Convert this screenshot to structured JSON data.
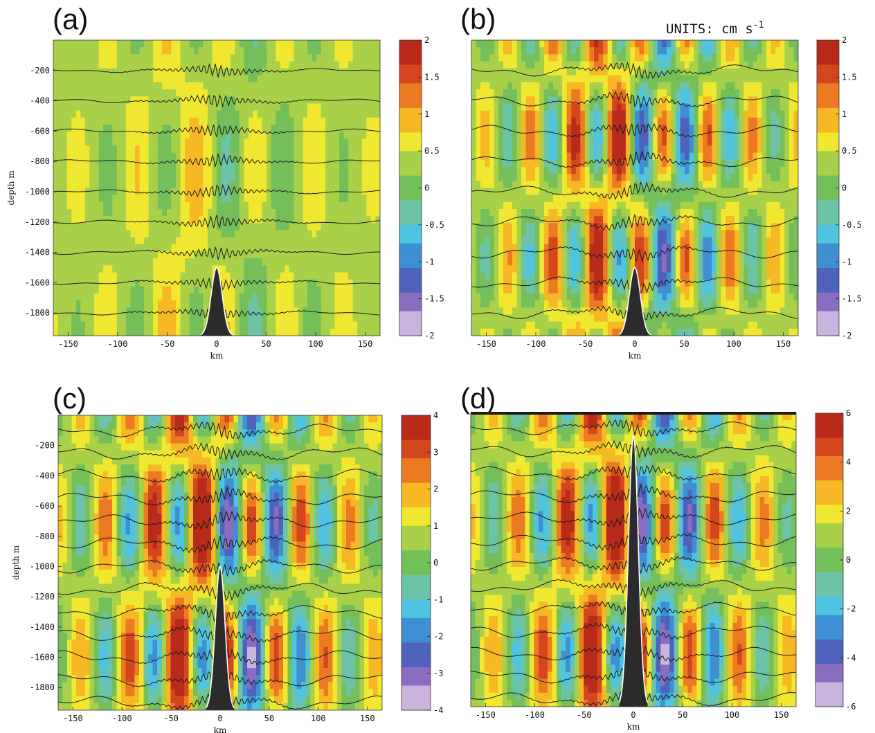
{
  "units_label": {
    "prefix": "UNITS: cm s",
    "superscript": "-1"
  },
  "colormap": [
    "#c8b4dc",
    "#8a6cc0",
    "#4e62bc",
    "#3f8fd3",
    "#4fc4e0",
    "#6cc3a8",
    "#74bf5a",
    "#a8d048",
    "#f0e830",
    "#f6b824",
    "#ec7a22",
    "#d4461e",
    "#b82a1a"
  ],
  "chart_data": [
    {
      "type": "heatmap",
      "panel_label": "(a)",
      "xlabel": "km",
      "ylabel": "depth m",
      "xlim": [
        -165,
        165
      ],
      "ylim": [
        -1950,
        0
      ],
      "xticks": [
        -150,
        -100,
        -50,
        0,
        50,
        100,
        150
      ],
      "yticks": [
        -200,
        -400,
        -600,
        -800,
        -1000,
        -1200,
        -1400,
        -1600,
        -1800
      ],
      "colorbar": {
        "min": -2,
        "max": 2,
        "ticks": [
          "2",
          "1.5",
          "1",
          "0.5",
          "0",
          "-0.5",
          "-1",
          "-1.5",
          "-2"
        ]
      },
      "isopycnal_depths": [
        -200,
        -400,
        -600,
        -800,
        -1000,
        -1200,
        -1400,
        -1600,
        -1800
      ],
      "ridge": {
        "crest_depth": -1500,
        "half_width_km": 10
      },
      "wave_amplitude": 0.25,
      "beam_spacing_km": 60,
      "ridge_top_bar": false
    },
    {
      "type": "heatmap",
      "panel_label": "(b)",
      "xlabel": "km",
      "ylabel": "",
      "xlim": [
        -165,
        165
      ],
      "ylim": [
        -1950,
        0
      ],
      "xticks": [
        -150,
        -100,
        -50,
        0,
        50,
        100,
        150
      ],
      "yticks": [],
      "colorbar": {
        "min": -2,
        "max": 2,
        "ticks": [
          "2",
          "1.5",
          "1",
          "0.5",
          "0",
          "-0.5",
          "-1",
          "-1.5",
          "-2"
        ]
      },
      "isopycnal_depths": [
        -200,
        -400,
        -600,
        -800,
        -1000,
        -1200,
        -1400,
        -1600,
        -1800
      ],
      "ridge": {
        "crest_depth": -1500,
        "half_width_km": 10
      },
      "wave_amplitude": 0.7,
      "beam_spacing_km": 45,
      "ridge_top_bar": false
    },
    {
      "type": "heatmap",
      "panel_label": "(c)",
      "xlabel": "km",
      "ylabel": "depth m",
      "xlim": [
        -165,
        165
      ],
      "ylim": [
        -1950,
        0
      ],
      "xticks": [
        -150,
        -100,
        -50,
        0,
        50,
        100,
        150
      ],
      "yticks": [
        -200,
        -400,
        -600,
        -800,
        -1000,
        -1200,
        -1400,
        -1600,
        -1800
      ],
      "colorbar": {
        "min": -4,
        "max": 4,
        "ticks": [
          "4",
          "3",
          "2",
          "1",
          "0",
          "-1",
          "-2",
          "-3",
          "-4"
        ]
      },
      "isopycnal_depths": [
        -100,
        -250,
        -400,
        -550,
        -700,
        -850,
        -1000,
        -1150,
        -1300,
        -1450,
        -1600,
        -1750,
        -1900
      ],
      "ridge": {
        "crest_depth": -1000,
        "half_width_km": 9
      },
      "wave_amplitude": 0.8,
      "beam_spacing_km": 50,
      "ridge_top_bar": false
    },
    {
      "type": "heatmap",
      "panel_label": "(d)",
      "xlabel": "km",
      "ylabel": "",
      "xlim": [
        -165,
        165
      ],
      "ylim": [
        -1950,
        0
      ],
      "xticks": [
        -150,
        -100,
        -50,
        0,
        50,
        100,
        150
      ],
      "yticks": [],
      "colorbar": {
        "min": -6,
        "max": 6,
        "ticks": [
          "6",
          "4",
          "2",
          "0",
          "-2",
          "-4",
          "-6"
        ]
      },
      "isopycnal_depths": [
        -100,
        -250,
        -400,
        -550,
        -700,
        -850,
        -1000,
        -1150,
        -1300,
        -1450,
        -1600,
        -1750,
        -1900
      ],
      "ridge": {
        "crest_depth": -150,
        "half_width_km": 9
      },
      "wave_amplitude": 0.8,
      "beam_spacing_km": 50,
      "ridge_top_bar": true
    }
  ]
}
